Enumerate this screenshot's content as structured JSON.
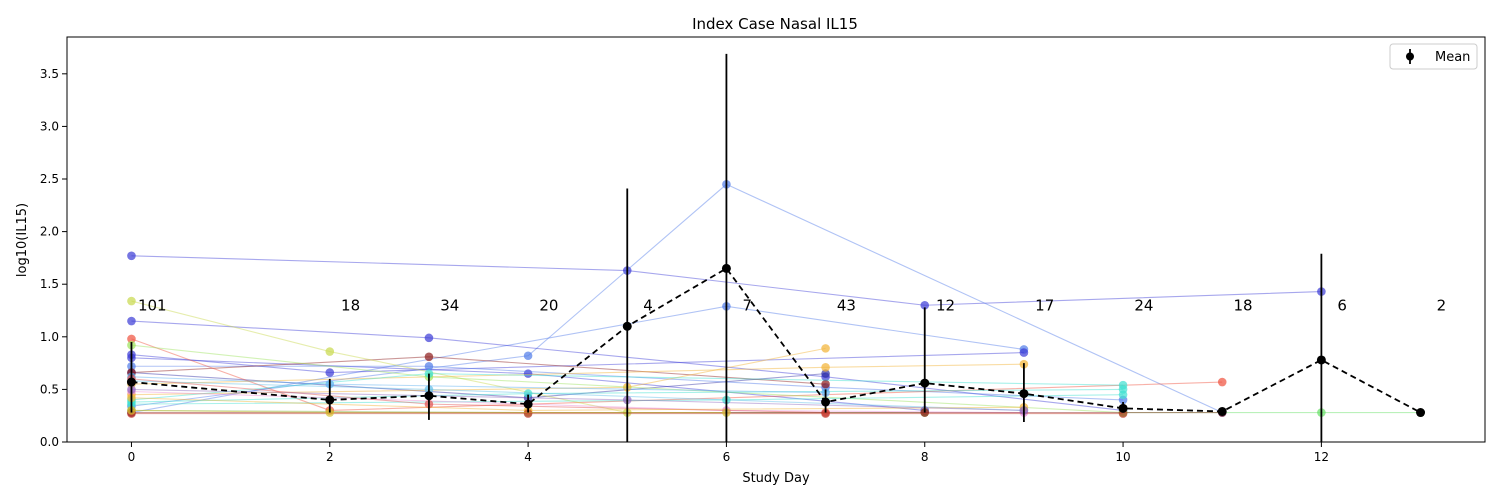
{
  "chart_data": {
    "type": "line",
    "title": "Index Case Nasal IL15",
    "xlabel": "Study Day",
    "ylabel": "log10(IL15)",
    "xlim": [
      -0.65,
      13.65
    ],
    "ylim": [
      0,
      3.85
    ],
    "xticks": [
      0,
      2,
      4,
      6,
      8,
      10,
      12
    ],
    "yticks": [
      0.0,
      0.5,
      1.0,
      1.5,
      2.0,
      2.5,
      3.0,
      3.5
    ],
    "grid": false,
    "legend": {
      "position": "top-right",
      "entries": [
        "Mean"
      ]
    },
    "mean": {
      "name": "Mean",
      "color": "#000000",
      "x": [
        0,
        2,
        3,
        4,
        5,
        6,
        7,
        8,
        9,
        10,
        11,
        12,
        13
      ],
      "y": [
        0.57,
        0.4,
        0.44,
        0.36,
        1.1,
        1.65,
        0.38,
        0.56,
        0.46,
        0.32,
        0.29,
        0.78,
        0.28
      ],
      "ylow": [
        0.28,
        0.28,
        0.21,
        0.28,
        0.0,
        0.0,
        0.28,
        0.28,
        0.19,
        0.28,
        0.28,
        0.0,
        0.28
      ],
      "yhigh": [
        0.95,
        0.6,
        0.65,
        0.45,
        2.41,
        3.69,
        0.5,
        1.28,
        0.75,
        0.38,
        0.3,
        1.79,
        0.28
      ]
    },
    "counts": {
      "x": [
        0.21,
        2.21,
        3.21,
        4.21,
        5.21,
        6.21,
        7.21,
        8.21,
        9.21,
        10.21,
        11.21,
        12.21,
        13.21
      ],
      "labels": [
        "101",
        "18",
        "34",
        "20",
        "4",
        "7",
        "43",
        "12",
        "17",
        "24",
        "18",
        "6",
        "2"
      ],
      "y": 1.25
    },
    "subjects": [
      {
        "color": "#3b3bd6",
        "x": [
          0,
          5,
          8,
          12
        ],
        "y": [
          1.77,
          1.63,
          1.3,
          1.43
        ]
      },
      {
        "color": "#4f7be8",
        "x": [
          0,
          4,
          6,
          11
        ],
        "y": [
          0.34,
          0.82,
          2.45,
          0.28
        ]
      },
      {
        "color": "#4f7be8",
        "x": [
          0,
          6,
          9
        ],
        "y": [
          0.28,
          1.29,
          0.88
        ]
      },
      {
        "color": "#3b3bd6",
        "x": [
          0,
          3,
          7,
          10
        ],
        "y": [
          1.15,
          0.99,
          0.62,
          0.3
        ]
      },
      {
        "color": "#3b3bd6",
        "x": [
          0,
          2,
          9
        ],
        "y": [
          0.83,
          0.66,
          0.85
        ]
      },
      {
        "color": "#3b3bd6",
        "x": [
          0,
          4,
          8
        ],
        "y": [
          0.8,
          0.65,
          0.3
        ]
      },
      {
        "color": "#2e2ea3",
        "x": [
          0,
          4,
          7
        ],
        "y": [
          0.66,
          0.42,
          0.65
        ]
      },
      {
        "color": "#4f7be8",
        "x": [
          0,
          3,
          7,
          10
        ],
        "y": [
          0.72,
          0.72,
          0.52,
          0.4
        ]
      },
      {
        "color": "#8b1a1a",
        "x": [
          0,
          3,
          7
        ],
        "y": [
          0.66,
          0.81,
          0.55
        ]
      },
      {
        "color": "#f0503c",
        "x": [
          0,
          2,
          11
        ],
        "y": [
          0.98,
          0.3,
          0.57
        ]
      },
      {
        "color": "#f2b233",
        "x": [
          0,
          5,
          7
        ],
        "y": [
          0.45,
          0.52,
          0.89
        ]
      },
      {
        "color": "#f2b233",
        "x": [
          0,
          7,
          9
        ],
        "y": [
          0.55,
          0.71,
          0.74
        ]
      },
      {
        "color": "#c8d84a",
        "x": [
          0,
          2,
          5
        ],
        "y": [
          1.34,
          0.86,
          0.28
        ]
      },
      {
        "color": "#9be35a",
        "x": [
          0,
          3,
          10
        ],
        "y": [
          0.92,
          0.62,
          0.28
        ]
      },
      {
        "color": "#3de0d0",
        "x": [
          0,
          3,
          10
        ],
        "y": [
          0.4,
          0.65,
          0.54
        ]
      },
      {
        "color": "#3de0d0",
        "x": [
          0,
          4,
          10
        ],
        "y": [
          0.38,
          0.46,
          0.5
        ]
      },
      {
        "color": "#3de0d0",
        "x": [
          0,
          6,
          10
        ],
        "y": [
          0.36,
          0.4,
          0.45
        ]
      },
      {
        "color": "#5fbfe8",
        "x": [
          0,
          3,
          9
        ],
        "y": [
          0.58,
          0.5,
          0.3
        ]
      },
      {
        "color": "#5ab0f0",
        "x": [
          0,
          2,
          7
        ],
        "y": [
          0.62,
          0.55,
          0.47
        ]
      },
      {
        "color": "#7cb342",
        "x": [
          0,
          4,
          8
        ],
        "y": [
          0.3,
          0.28,
          0.28
        ]
      },
      {
        "color": "#e88bd8",
        "x": [
          0,
          6,
          9
        ],
        "y": [
          0.48,
          0.3,
          0.28
        ]
      },
      {
        "color": "#e05050",
        "x": [
          0,
          3,
          7
        ],
        "y": [
          0.6,
          0.36,
          0.28
        ]
      },
      {
        "color": "#f2b233",
        "x": [
          0,
          4,
          9
        ],
        "y": [
          0.42,
          0.3,
          0.33
        ]
      },
      {
        "color": "#66e066",
        "x": [
          10,
          12,
          13
        ],
        "y": [
          0.28,
          0.28,
          0.28
        ]
      },
      {
        "color": "#8b1a1a",
        "x": [
          0,
          8,
          11
        ],
        "y": [
          0.28,
          0.28,
          0.28
        ]
      },
      {
        "color": "#c0392b",
        "x": [
          0,
          4,
          7,
          10
        ],
        "y": [
          0.27,
          0.27,
          0.27,
          0.27
        ]
      },
      {
        "color": "#d4c030",
        "x": [
          0,
          2,
          6
        ],
        "y": [
          0.3,
          0.28,
          0.28
        ]
      },
      {
        "color": "#8e6bbf",
        "x": [
          0,
          5,
          9
        ],
        "y": [
          0.5,
          0.4,
          0.3
        ]
      }
    ]
  }
}
